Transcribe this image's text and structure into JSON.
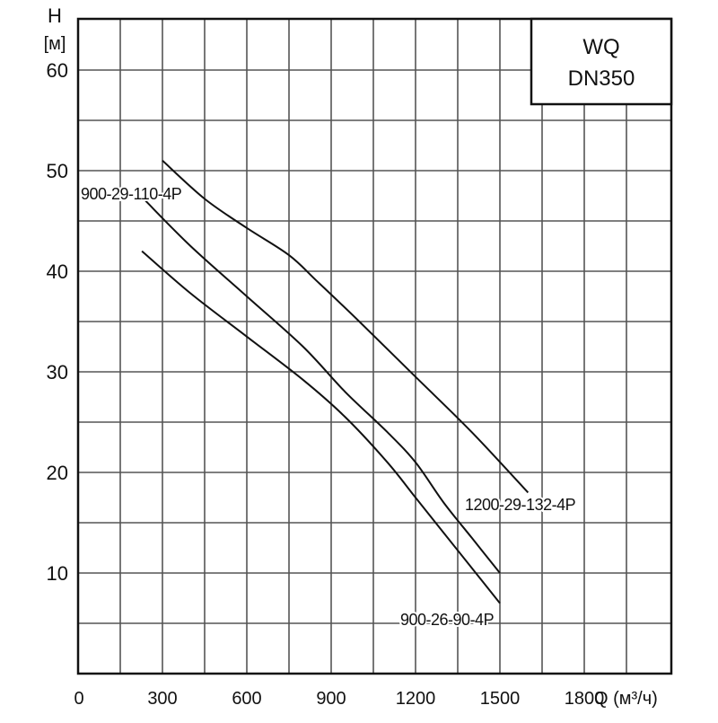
{
  "chart_data": {
    "type": "line",
    "title": "",
    "legend_box": {
      "line1": "WQ",
      "line2": "DN350",
      "placement": "top-right"
    },
    "xlabel": "Q (м³/ч)",
    "ylabel_line1": "H",
    "ylabel_line2": "[м]",
    "xlim": [
      0,
      2100
    ],
    "ylim": [
      0,
      65
    ],
    "x_ticks": [
      0,
      300,
      600,
      900,
      1200,
      1500,
      1800
    ],
    "x_tick_labels": [
      "0",
      "300",
      "600",
      "900",
      "1200",
      "1500",
      "1800"
    ],
    "y_ticks": [
      10,
      20,
      30,
      40,
      50,
      60
    ],
    "y_tick_labels": [
      "10",
      "20",
      "30",
      "40",
      "50",
      "60"
    ],
    "grid": true,
    "grid_x_step": 150,
    "grid_y_step": 5,
    "series": [
      {
        "name": "1200-29-132-4P",
        "x": [
          300,
          450,
          600,
          750,
          850,
          1000,
          1200,
          1400,
          1600
        ],
        "y": [
          51,
          47.2,
          44.3,
          41.6,
          39,
          35,
          29.5,
          24,
          18
        ]
      },
      {
        "name": "900-29-110-4P",
        "x": [
          240,
          400,
          600,
          800,
          950,
          1100,
          1200,
          1300,
          1400,
          1500
        ],
        "y": [
          47,
          42.5,
          37.5,
          32.5,
          28,
          24,
          21,
          17,
          13.5,
          10
        ]
      },
      {
        "name": "900-26-90-4P",
        "x": [
          227,
          400,
          600,
          800,
          950,
          1100,
          1200,
          1300,
          1400,
          1500
        ],
        "y": [
          42,
          37.8,
          33.5,
          29.2,
          25.5,
          21,
          17.5,
          14,
          10.5,
          7
        ]
      }
    ]
  }
}
